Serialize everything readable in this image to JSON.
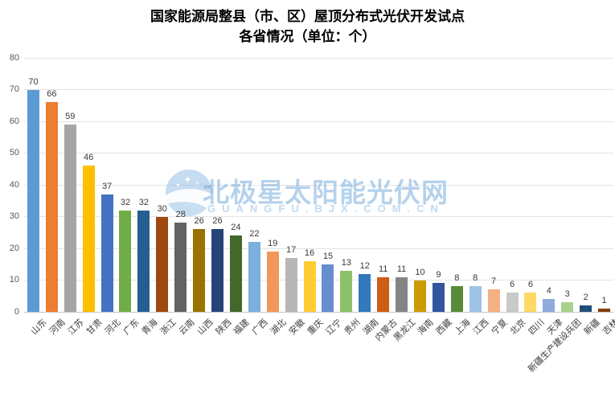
{
  "chart_data": {
    "type": "bar",
    "title_line1": "国家能源局整县（市、区）屋顶分布式光伏开发试点",
    "title_line2": "各省情况（单位：个）",
    "unit_label": "个",
    "categories": [
      "山东",
      "河南",
      "江苏",
      "甘肃",
      "河北",
      "广东",
      "青海",
      "浙江",
      "云南",
      "山西",
      "陕西",
      "福建",
      "广西",
      "湖北",
      "安徽",
      "重庆",
      "辽宁",
      "贵州",
      "湖南",
      "内蒙古",
      "黑龙江",
      "海南",
      "西藏",
      "上海",
      "江西",
      "宁夏",
      "北京",
      "四川",
      "天津",
      "新疆生产建设兵团",
      "新疆",
      "吉林"
    ],
    "values": [
      70,
      66,
      59,
      46,
      37,
      32,
      32,
      30,
      28,
      26,
      26,
      24,
      22,
      19,
      17,
      16,
      15,
      13,
      12,
      11,
      11,
      10,
      9,
      8,
      8,
      7,
      6,
      6,
      4,
      3,
      2,
      1
    ],
    "bar_colors": [
      "#5B9BD5",
      "#ED7D31",
      "#A5A5A5",
      "#FFC000",
      "#4472C4",
      "#70AD47",
      "#255E91",
      "#9E480E",
      "#636363",
      "#997300",
      "#264478",
      "#43682B",
      "#7CAFDD",
      "#F1975A",
      "#B7B7B7",
      "#FFCD33",
      "#698ED0",
      "#8CC168",
      "#3379BD",
      "#CE5E13",
      "#848484",
      "#CC9A00",
      "#33549E",
      "#598A38",
      "#9DC3E6",
      "#F4B183",
      "#C9C9C9",
      "#FFD966",
      "#8FAADC",
      "#A9D18E",
      "#1F4E79",
      "#843C0C"
    ],
    "ylim": [
      0,
      80
    ],
    "yticks": [
      0,
      10,
      20,
      30,
      40,
      50,
      60,
      70,
      80
    ],
    "grid": true,
    "legend_position": "none",
    "data_labels": true,
    "watermark": {
      "text": "北极星太阳能光伏网",
      "sub": "GUANGFU.BJX.COM.CN",
      "logo_icon": "moon-stars-icon",
      "accent_color": "#5B9BD5"
    }
  }
}
